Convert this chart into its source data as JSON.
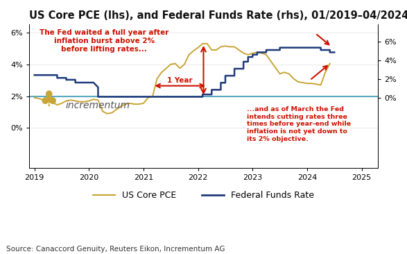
{
  "title": "US Core PCE (lhs), and Federal Funds Rate (rhs), 01/2019–04/2024",
  "source": "Source: Canaccord Genuity, Reuters Eikon, Incrementum AG",
  "legend_pce": "US Core PCE",
  "legend_ffr": "Federal Funds Rate",
  "pce_color": "#C8A535",
  "ffr_color": "#1F3A7A",
  "ref_line_color": "#5BAABF",
  "ann_color": "#CC1100",
  "bg_color": "#FFFFFF",
  "pce_data": [
    [
      2019.0,
      1.9
    ],
    [
      2019.083,
      1.85
    ],
    [
      2019.167,
      1.75
    ],
    [
      2019.25,
      1.65
    ],
    [
      2019.333,
      1.6
    ],
    [
      2019.417,
      1.45
    ],
    [
      2019.5,
      1.55
    ],
    [
      2019.583,
      1.7
    ],
    [
      2019.667,
      1.75
    ],
    [
      2019.75,
      1.7
    ],
    [
      2019.833,
      1.65
    ],
    [
      2019.917,
      1.65
    ],
    [
      2020.0,
      1.7
    ],
    [
      2020.083,
      1.8
    ],
    [
      2020.167,
      1.75
    ],
    [
      2020.25,
      1.05
    ],
    [
      2020.333,
      0.9
    ],
    [
      2020.417,
      0.95
    ],
    [
      2020.5,
      1.15
    ],
    [
      2020.583,
      1.35
    ],
    [
      2020.667,
      1.5
    ],
    [
      2020.75,
      1.55
    ],
    [
      2020.833,
      1.5
    ],
    [
      2020.917,
      1.5
    ],
    [
      2021.0,
      1.55
    ],
    [
      2021.083,
      1.9
    ],
    [
      2021.167,
      2.0
    ],
    [
      2021.25,
      3.1
    ],
    [
      2021.333,
      3.5
    ],
    [
      2021.417,
      3.75
    ],
    [
      2021.5,
      4.0
    ],
    [
      2021.583,
      4.05
    ],
    [
      2021.667,
      3.75
    ],
    [
      2021.75,
      4.0
    ],
    [
      2021.833,
      4.6
    ],
    [
      2021.917,
      4.85
    ],
    [
      2022.0,
      5.05
    ],
    [
      2022.083,
      5.3
    ],
    [
      2022.167,
      5.3
    ],
    [
      2022.25,
      4.9
    ],
    [
      2022.333,
      4.9
    ],
    [
      2022.417,
      5.1
    ],
    [
      2022.5,
      5.15
    ],
    [
      2022.583,
      5.1
    ],
    [
      2022.667,
      5.1
    ],
    [
      2022.75,
      4.9
    ],
    [
      2022.833,
      4.7
    ],
    [
      2022.917,
      4.6
    ],
    [
      2023.0,
      4.7
    ],
    [
      2023.083,
      4.75
    ],
    [
      2023.167,
      4.7
    ],
    [
      2023.25,
      4.6
    ],
    [
      2023.333,
      4.2
    ],
    [
      2023.417,
      3.8
    ],
    [
      2023.5,
      3.4
    ],
    [
      2023.583,
      3.5
    ],
    [
      2023.667,
      3.4
    ],
    [
      2023.75,
      3.1
    ],
    [
      2023.833,
      2.9
    ],
    [
      2023.917,
      2.85
    ],
    [
      2024.0,
      2.8
    ],
    [
      2024.083,
      2.8
    ],
    [
      2024.167,
      2.75
    ],
    [
      2024.25,
      2.7
    ],
    [
      2024.333,
      3.5
    ],
    [
      2024.417,
      4.05
    ]
  ],
  "ffr_data": [
    [
      2019.0,
      2.4
    ],
    [
      2019.417,
      2.4
    ],
    [
      2019.417,
      2.1
    ],
    [
      2019.583,
      2.1
    ],
    [
      2019.583,
      1.9
    ],
    [
      2019.75,
      1.9
    ],
    [
      2019.75,
      1.6
    ],
    [
      2019.917,
      1.6
    ],
    [
      2020.0,
      1.6
    ],
    [
      2020.083,
      1.6
    ],
    [
      2020.167,
      1.1
    ],
    [
      2020.167,
      0.08
    ],
    [
      2020.25,
      0.08
    ],
    [
      2022.083,
      0.08
    ],
    [
      2022.083,
      0.33
    ],
    [
      2022.25,
      0.33
    ],
    [
      2022.25,
      0.83
    ],
    [
      2022.417,
      0.83
    ],
    [
      2022.417,
      1.58
    ],
    [
      2022.5,
      1.58
    ],
    [
      2022.5,
      2.33
    ],
    [
      2022.667,
      2.33
    ],
    [
      2022.667,
      3.08
    ],
    [
      2022.833,
      3.08
    ],
    [
      2022.833,
      3.83
    ],
    [
      2022.917,
      3.83
    ],
    [
      2022.917,
      4.33
    ],
    [
      2023.0,
      4.33
    ],
    [
      2023.0,
      4.58
    ],
    [
      2023.083,
      4.58
    ],
    [
      2023.083,
      4.83
    ],
    [
      2023.25,
      4.83
    ],
    [
      2023.25,
      5.08
    ],
    [
      2023.417,
      5.08
    ],
    [
      2023.5,
      5.08
    ],
    [
      2023.5,
      5.33
    ],
    [
      2024.25,
      5.33
    ],
    [
      2024.25,
      5.08
    ],
    [
      2024.417,
      5.08
    ],
    [
      2024.417,
      4.83
    ],
    [
      2024.5,
      4.83
    ]
  ],
  "xlim": [
    2018.9,
    2025.3
  ],
  "ylim_lhs": [
    -2.5,
    6.5
  ],
  "ylim_rhs": [
    -7.5,
    7.8
  ],
  "yticks_lhs": [
    0,
    2,
    4,
    6
  ],
  "yticks_rhs": [
    0,
    2,
    4,
    6
  ],
  "xticks": [
    2019,
    2020,
    2021,
    2022,
    2023,
    2024,
    2025
  ],
  "ref_line_y": 2.0,
  "annotation1_text": "The Fed waited a full year after\ninflation burst above 2%\nbefore lifting rates...",
  "annotation2_text": "...and as of March the Fed\nintends cutting rates three\ntimes before year-end while\ninflation is not yet down to\nits 2% objective.",
  "year_label_text": "1 Year",
  "title_fontsize": 10.5,
  "tick_fontsize": 8,
  "legend_fontsize": 9,
  "source_fontsize": 7.5
}
